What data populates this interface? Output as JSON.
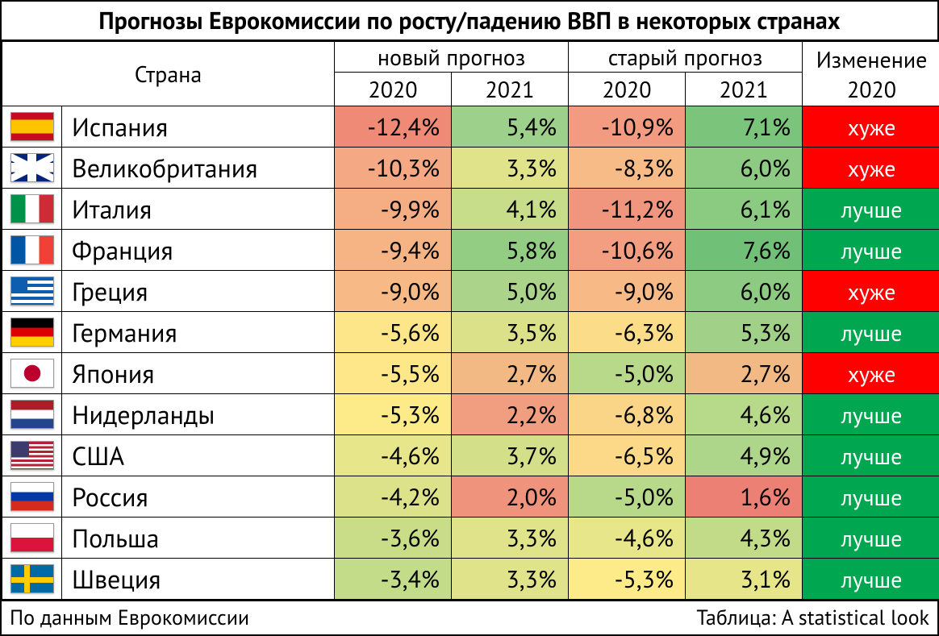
{
  "title": "Прогнозы Еврокомиссии по росту/падению ВВП в некоторых странах",
  "headers": {
    "country": "Страна",
    "new": "новый прогноз",
    "old": "старый прогноз",
    "change": "Изменение 2020",
    "y2020": "2020",
    "y2021": "2021"
  },
  "footer": {
    "left": "По данным Еврокомиссии",
    "right": "Таблица: A statistical look"
  },
  "change_colors": {
    "worse": "#ff0000",
    "better": "#00a650"
  },
  "heat_palette_note": "cells colored on a red→yellow→green gradient by value",
  "rows": [
    {
      "flag": "es",
      "country": "Испания",
      "new2020": {
        "v": "-12,4%",
        "bg": "#ef8a77"
      },
      "new2021": {
        "v": "5,4%",
        "bg": "#9dd08a"
      },
      "old2020": {
        "v": "-10,9%",
        "bg": "#f29b80"
      },
      "old2021": {
        "v": "7,1%",
        "bg": "#7bc47b"
      },
      "change": {
        "v": "хуже",
        "k": "worse"
      }
    },
    {
      "flag": "gb",
      "country": "Великобритания",
      "new2020": {
        "v": "-10,3%",
        "bg": "#f4a884"
      },
      "new2021": {
        "v": "3,3%",
        "bg": "#e0e389"
      },
      "old2020": {
        "v": "-8,3%",
        "bg": "#f6bb86"
      },
      "old2021": {
        "v": "6,0%",
        "bg": "#8ecb82"
      },
      "change": {
        "v": "хуже",
        "k": "worse"
      }
    },
    {
      "flag": "it",
      "country": "Италия",
      "new2020": {
        "v": "-9,9%",
        "bg": "#f5ad84"
      },
      "new2021": {
        "v": "4,1%",
        "bg": "#c8dd89"
      },
      "old2020": {
        "v": "-11,2%",
        "bg": "#f1967e"
      },
      "old2021": {
        "v": "6,1%",
        "bg": "#8bca81"
      },
      "change": {
        "v": "лучше",
        "k": "better"
      }
    },
    {
      "flag": "fr",
      "country": "Франция",
      "new2020": {
        "v": "-9,4%",
        "bg": "#f6b485"
      },
      "new2021": {
        "v": "5,8%",
        "bg": "#93cd84"
      },
      "old2020": {
        "v": "-10,6%",
        "bg": "#f39e81"
      },
      "old2021": {
        "v": "7,6%",
        "bg": "#70c077"
      },
      "change": {
        "v": "лучше",
        "k": "better"
      }
    },
    {
      "flag": "gr",
      "country": "Греция",
      "new2020": {
        "v": "-9,0%",
        "bg": "#f7ba86"
      },
      "new2021": {
        "v": "5,0%",
        "bg": "#abd48a"
      },
      "old2020": {
        "v": "-9,0%",
        "bg": "#f7ba86"
      },
      "old2021": {
        "v": "6,0%",
        "bg": "#8ecb82"
      },
      "change": {
        "v": "хуже",
        "k": "worse"
      }
    },
    {
      "flag": "de",
      "country": "Германия",
      "new2020": {
        "v": "-5,6%",
        "bg": "#fde689"
      },
      "new2021": {
        "v": "3,5%",
        "bg": "#dae189"
      },
      "old2020": {
        "v": "-6,3%",
        "bg": "#fbdc88"
      },
      "old2021": {
        "v": "5,3%",
        "bg": "#a1d189"
      },
      "change": {
        "v": "лучше",
        "k": "better"
      }
    },
    {
      "flag": "jp",
      "country": "Япония",
      "new2020": {
        "v": "-5,5%",
        "bg": "#fde789"
      },
      "new2021": {
        "v": "2,7%",
        "bg": "#f3b985"
      },
      "old2020": {
        "v": "-5,0%",
        "bg": "#b7d989"
      },
      "old2021": {
        "v": "2,7%",
        "bg": "#f3b985"
      },
      "change": {
        "v": "хуже",
        "k": "worse"
      }
    },
    {
      "flag": "nl",
      "country": "Нидерланды",
      "new2020": {
        "v": "-5,3%",
        "bg": "#fdea89"
      },
      "new2021": {
        "v": "2,2%",
        "bg": "#f19e80"
      },
      "old2020": {
        "v": "-6,8%",
        "bg": "#fad587"
      },
      "old2021": {
        "v": "4,6%",
        "bg": "#b7d98a"
      },
      "change": {
        "v": "лучше",
        "k": "better"
      }
    },
    {
      "flag": "us",
      "country": "США",
      "new2020": {
        "v": "-4,6%",
        "bg": "#e7e68a"
      },
      "new2021": {
        "v": "3,7%",
        "bg": "#d3df89"
      },
      "old2020": {
        "v": "-6,5%",
        "bg": "#fbd988"
      },
      "old2021": {
        "v": "4,9%",
        "bg": "#aed68a"
      },
      "change": {
        "v": "лучше",
        "k": "better"
      }
    },
    {
      "flag": "ru",
      "country": "Россия",
      "new2020": {
        "v": "-4,2%",
        "bg": "#dbe289"
      },
      "new2021": {
        "v": "2,0%",
        "bg": "#ef937c"
      },
      "old2020": {
        "v": "-5,0%",
        "bg": "#b7d989"
      },
      "old2021": {
        "v": "1,6%",
        "bg": "#ec8075"
      },
      "change": {
        "v": "лучше",
        "k": "better"
      }
    },
    {
      "flag": "pl",
      "country": "Польша",
      "new2020": {
        "v": "-3,6%",
        "bg": "#c9dd89"
      },
      "new2021": {
        "v": "3,3%",
        "bg": "#e0e389"
      },
      "old2020": {
        "v": "-4,6%",
        "bg": "#e7e68a"
      },
      "old2021": {
        "v": "4,3%",
        "bg": "#c1db89"
      },
      "change": {
        "v": "лучше",
        "k": "better"
      }
    },
    {
      "flag": "se",
      "country": "Швеция",
      "new2020": {
        "v": "-3,4%",
        "bg": "#c3dc89"
      },
      "new2021": {
        "v": "3,3%",
        "bg": "#e0e389"
      },
      "old2020": {
        "v": "-5,3%",
        "bg": "#fdea89"
      },
      "old2021": {
        "v": "3,1%",
        "bg": "#e7e58a"
      },
      "change": {
        "v": "лучше",
        "k": "better"
      }
    }
  ]
}
